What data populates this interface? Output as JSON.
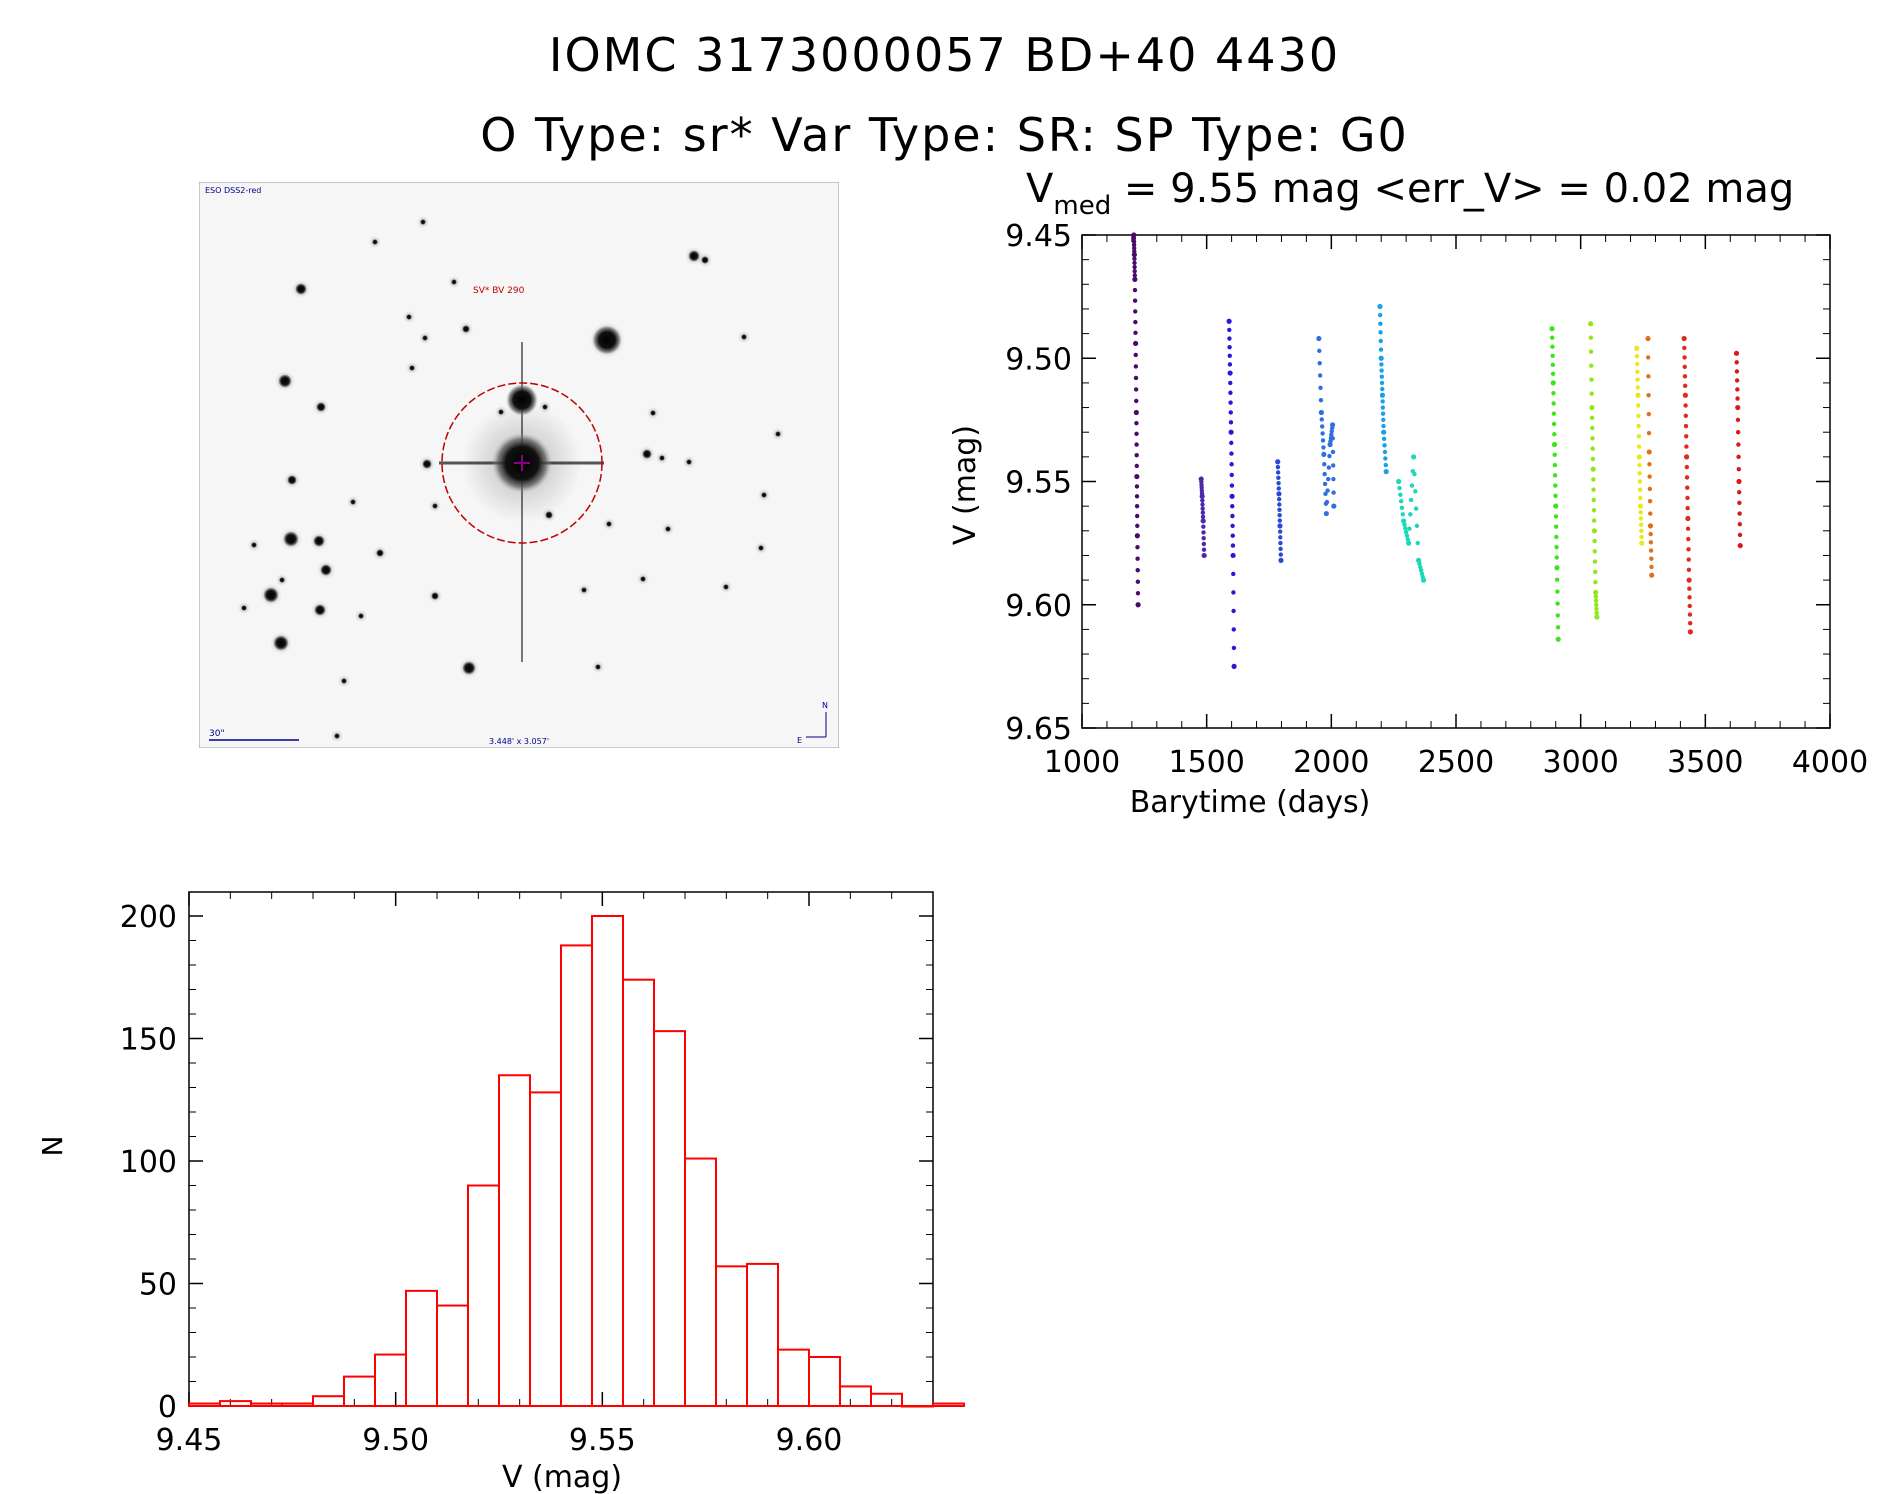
{
  "header": {
    "title": "IOMC 3173000057   BD+40  4430",
    "subtitle": "O Type: sr*  Var Type: SR:  SP Type: G0"
  },
  "image_panel": {
    "survey_label": "ESO DSS2-red",
    "target_label": "SV* BV 290",
    "scale_label": "30\"",
    "fov_label": "3.448' x 3.057'",
    "north_label": "N",
    "east_label": "E"
  },
  "chart_data": [
    {
      "type": "scatter",
      "title_prefix": "V",
      "title_subscript": "med",
      "title_rest": " = 9.55 mag <err_V> = 0.02 mag",
      "xlabel": "Barytime (days)",
      "ylabel": "V (mag)",
      "xlim": [
        1000,
        4000
      ],
      "ylim": [
        9.45,
        9.65
      ],
      "y_inverted": true,
      "x_ticks": [
        1000,
        1500,
        2000,
        2500,
        3000,
        3500,
        4000
      ],
      "y_ticks": [
        "9.45",
        "9.50",
        "9.55",
        "9.60",
        "9.65"
      ],
      "series": [
        {
          "color": "#4b0a6b",
          "x": [
            1208,
            1210,
            1212,
            1215,
            1218,
            1220,
            1222,
            1225
          ],
          "y": [
            9.45,
            9.458,
            9.468,
            9.494,
            9.522,
            9.548,
            9.572,
            9.6
          ]
        },
        {
          "color": "#4b2aa8",
          "x": [
            1478,
            1482,
            1486,
            1490
          ],
          "y": [
            9.549,
            9.556,
            9.566,
            9.58
          ]
        },
        {
          "color": "#2a18d8",
          "x": [
            1590,
            1594,
            1598,
            1602,
            1606,
            1610
          ],
          "y": [
            9.485,
            9.506,
            9.53,
            9.556,
            9.58,
            9.625
          ]
        },
        {
          "color": "#2a4ad0",
          "x": [
            1785,
            1790,
            1794,
            1798
          ],
          "y": [
            9.542,
            9.555,
            9.568,
            9.582
          ]
        },
        {
          "color": "#2f6fe0",
          "x": [
            1950,
            1960,
            1970,
            1980,
            1995,
            2005,
            2010
          ],
          "y": [
            9.492,
            9.522,
            9.539,
            9.563,
            9.535,
            9.527,
            9.56
          ]
        },
        {
          "color": "#1aa0e8",
          "x": [
            2195,
            2200,
            2205,
            2210,
            2220
          ],
          "y": [
            9.479,
            9.5,
            9.515,
            9.53,
            9.546
          ]
        },
        {
          "color": "#1ad8b8",
          "x": [
            2270,
            2290,
            2310,
            2330,
            2350,
            2370
          ],
          "y": [
            9.55,
            9.566,
            9.575,
            9.54,
            9.582,
            9.59
          ]
        },
        {
          "color": "#3ce61a",
          "x": [
            2885,
            2890,
            2895,
            2900,
            2905,
            2910
          ],
          "y": [
            9.488,
            9.51,
            9.535,
            9.56,
            9.585,
            9.614
          ]
        },
        {
          "color": "#8ee81a",
          "x": [
            3040,
            3045,
            3050,
            3055,
            3060,
            3065
          ],
          "y": [
            9.486,
            9.52,
            9.545,
            9.57,
            9.595,
            9.605
          ]
        },
        {
          "color": "#e8e81a",
          "x": [
            3225,
            3230,
            3235,
            3240,
            3245
          ],
          "y": [
            9.496,
            9.515,
            9.54,
            9.56,
            9.575
          ]
        },
        {
          "color": "#e0701a",
          "x": [
            3270,
            3275,
            3280,
            3285
          ],
          "y": [
            9.492,
            9.538,
            9.568,
            9.588
          ]
        },
        {
          "color": "#e02a1a",
          "x": [
            3415,
            3420,
            3425,
            3430,
            3435,
            3440
          ],
          "y": [
            9.492,
            9.515,
            9.54,
            9.565,
            9.59,
            9.611
          ]
        },
        {
          "color": "#d81a1a",
          "x": [
            3625,
            3630,
            3635,
            3640
          ],
          "y": [
            9.498,
            9.52,
            9.55,
            9.576
          ]
        }
      ]
    },
    {
      "type": "bar",
      "title": "",
      "xlabel": "V (mag)",
      "ylabel": "N",
      "xlim": [
        9.45,
        9.63
      ],
      "ylim": [
        0,
        200
      ],
      "x_ticks": [
        "9.45",
        "9.50",
        "9.55",
        "9.60"
      ],
      "y_ticks": [
        "0",
        "50",
        "100",
        "150",
        "200"
      ],
      "bar_color": "#ff0000",
      "bin_start": 9.45,
      "bin_width": 0.0075,
      "values": [
        1,
        2,
        1,
        1,
        4,
        12,
        21,
        47,
        41,
        90,
        135,
        128,
        188,
        200,
        174,
        153,
        101,
        57,
        58,
        23,
        20,
        8,
        5,
        0,
        1
      ]
    }
  ]
}
